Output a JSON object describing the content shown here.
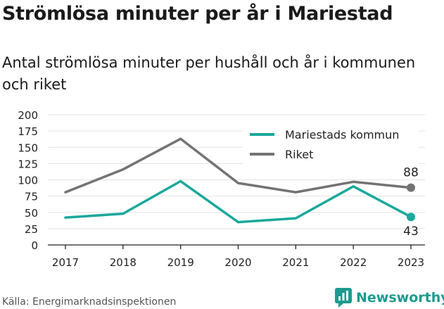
{
  "header": {
    "title": "Strömlösa minuter per år i Mariestad",
    "subtitle": "Antal strömlösa minuter per hushåll och år i kommunen och riket"
  },
  "footer": {
    "source": "Källa: Energimarknadsinspektionen",
    "brand": "Newsworthy"
  },
  "colors": {
    "mariestad": "#1ba89b",
    "riket": "#737373",
    "brand": "#1c9b8f"
  },
  "chart_data": {
    "type": "line",
    "x": [
      "2017",
      "2018",
      "2019",
      "2020",
      "2021",
      "2022",
      "2023"
    ],
    "series": [
      {
        "name": "Mariestads kommun",
        "values": [
          42,
          48,
          98,
          35,
          41,
          90,
          43
        ]
      },
      {
        "name": "Riket",
        "values": [
          81,
          116,
          163,
          95,
          81,
          97,
          88
        ]
      }
    ],
    "yticks": [
      "0",
      "25",
      "50",
      "75",
      "100",
      "125",
      "150",
      "175",
      "200"
    ],
    "ylim": [
      0,
      200
    ],
    "grid": true,
    "legend": "top-right",
    "end_labels": [
      "43",
      "88"
    ]
  }
}
